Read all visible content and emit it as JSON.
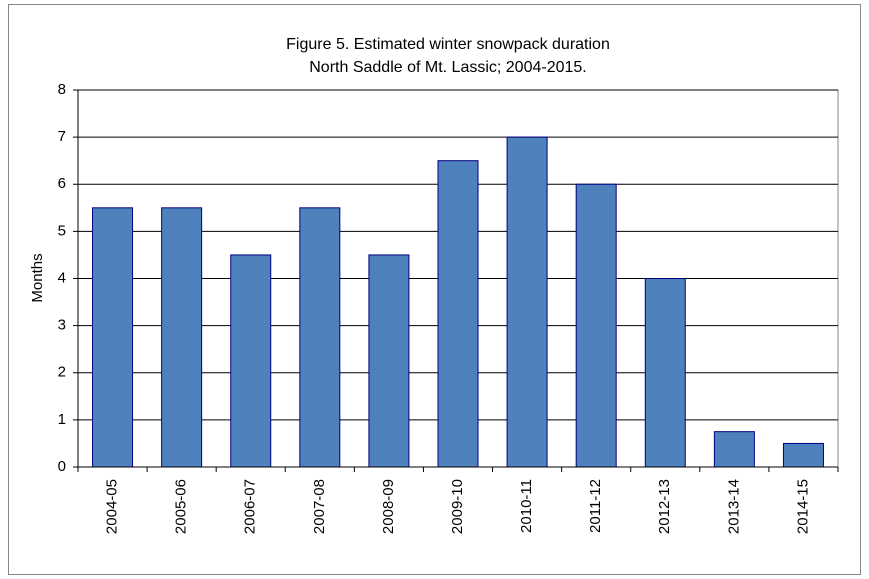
{
  "chart_data": {
    "type": "bar",
    "title": "Figure 5.  Estimated winter snowpack duration",
    "subtitle": "North Saddle of Mt. Lassic; 2004-2015.",
    "y_label": "Months",
    "categories": [
      "2004-05",
      "2005-06",
      "2006-07",
      "2007-08",
      "2008-09",
      "2009-10",
      "2010-11",
      "2011-12",
      "2012-13",
      "2013-14",
      "2014-15"
    ],
    "values": [
      5.5,
      5.5,
      4.5,
      5.5,
      4.5,
      6.5,
      7,
      6,
      4,
      0.75,
      0.5
    ],
    "color": "#4f81bd",
    "ylim": [
      0,
      8
    ],
    "yticks": [
      0,
      1,
      2,
      3,
      4,
      5,
      6,
      7,
      8
    ],
    "grid": true
  }
}
